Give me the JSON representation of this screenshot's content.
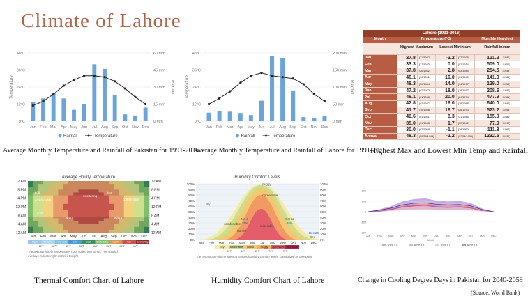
{
  "page": {
    "title": "Climate of Lahore",
    "source": "(Source: World Bank)"
  },
  "colors": {
    "title": "#b0644a",
    "bar": "#6ba3db",
    "line": "#222222",
    "table_header": "#8f3e28",
    "table_row": "#b65d43"
  },
  "captions": {
    "pakistan": "Average Monthly Temperature and Rainfall of Pakistan for 1991-2016",
    "lahore": "Average Monthly Temperature and Rainfall of Lahore for 1991-2016",
    "table": "Highest Max and Lowest Min Temp and Rainfall",
    "thermal": "Thermal Comfort Chart of Lahore",
    "humidity": "Humidity Comfort Chart of Lahore",
    "cooling": "Change in Cooling Degree Days in Pakistan for 2040-2059"
  },
  "chart_data": [
    {
      "type": "bar",
      "categories": [
        "Jan",
        "Feb",
        "Mar",
        "Apr",
        "May",
        "Jun",
        "Jul",
        "Aug",
        "Sep",
        "Oct",
        "Nov",
        "Dec"
      ],
      "series": [
        {
          "name": "Rainfall",
          "values": [
            17,
            20,
            25,
            20,
            10,
            15,
            50,
            46,
            23,
            6,
            5,
            12
          ]
        },
        {
          "name": "Temperature",
          "values": [
            11,
            14,
            19,
            25,
            29,
            32,
            32,
            31,
            28,
            23,
            17,
            12
          ]
        }
      ],
      "ylabel": "Temperature",
      "y2label": "Rainfall",
      "yticks": [
        "0°C",
        "12°C",
        "24°C",
        "36°C",
        "48°C"
      ],
      "y2ticks": [
        "0 mm",
        "15 mm",
        "30 mm",
        "45 mm",
        "60 mm"
      ],
      "ylim": [
        0,
        48
      ],
      "y2lim": [
        0,
        60
      ],
      "legend": "bottom-center"
    },
    {
      "type": "bar",
      "categories": [
        "Jan",
        "Feb",
        "Mar",
        "Apr",
        "May",
        "Jun",
        "Jul",
        "Aug",
        "Sep",
        "Oct",
        "Nov",
        "Dec"
      ],
      "series": [
        {
          "name": "Rainfall",
          "values": [
            25,
            30,
            28,
            22,
            18,
            60,
            190,
            185,
            90,
            12,
            10,
            15
          ]
        },
        {
          "name": "Temperature",
          "values": [
            12,
            16,
            21,
            27,
            32,
            34,
            32,
            31,
            30,
            26,
            19,
            14
          ]
        }
      ],
      "ylabel": "Temperature",
      "y2label": "Rainfall",
      "yticks": [
        "0°C",
        "12°C",
        "24°C",
        "36°C",
        "48°C"
      ],
      "y2ticks": [
        "0 mm",
        "50 mm",
        "100 mm",
        "150 mm",
        "200 mm"
      ],
      "ylim": [
        0,
        48
      ],
      "y2lim": [
        0,
        200
      ],
      "legend": "bottom-center"
    },
    {
      "type": "table",
      "title": "Lahore (1931-2016)",
      "columns": [
        "Month",
        "Highest Maximum",
        "Lowest Minimum",
        "Rainfall in mm"
      ],
      "group_headers": [
        "Temperature (°C)",
        "Monthly Heaviest"
      ],
      "rows": [
        [
          "Jan",
          "27.8",
          "(31/1932)",
          "-2.2",
          "(17/1935)",
          "121.2",
          "(1981)"
        ],
        [
          "Feb",
          "33.3",
          "(27/1953)",
          "0.0",
          "(02/1934)",
          "509.0",
          "(1956)"
        ],
        [
          "Mar",
          "37.8",
          "(26/1942)",
          "2.8",
          "(03/1945)",
          "254.5",
          "(1954)"
        ],
        [
          "Apr",
          "46.1",
          "(30/1941)",
          "10.0",
          "(01/1940)",
          "141.0",
          "(1985)"
        ],
        [
          "May",
          "48.3",
          "(30/1944)",
          "14.0",
          "(14/1977)",
          "129.0",
          "(1958)"
        ],
        [
          "Jun",
          "47.2",
          "(02/1973)",
          "18.0",
          "(18/1977)",
          "208.6",
          "(1996)"
        ],
        [
          "Jul",
          "46.1",
          "(01/1948)",
          "20.0",
          "(04/1974)",
          "477.9",
          "(1981)"
        ],
        [
          "Aug",
          "42.8",
          "(02/1947)",
          "19.0",
          "(18/1988)",
          "640.0",
          "(1996)"
        ],
        [
          "Sep",
          "41.7",
          "(16/1938)",
          "16.7",
          "(25/1973)",
          "523.2",
          "(1954)"
        ],
        [
          "Oct",
          "40.6",
          "(01/1941)",
          "8.3",
          "(31/1945)",
          "155.0",
          "(1985)"
        ],
        [
          "Nov",
          "35.0",
          "(01/1943)",
          "1.7",
          "(30/1942)",
          "77.9",
          "(1997)"
        ],
        [
          "Dec",
          "30.0",
          "(07/1998)",
          "-1.1",
          "(28/1950)",
          "111.8",
          "(1967)"
        ],
        [
          "Annual",
          "48.3",
          "(30/05/1944)",
          "-2.2",
          "(17/01/1935)",
          "1232.5",
          "(1997)"
        ]
      ],
      "units": [
        "(dd/yyyy)",
        "(dd/yyyy)",
        "(yyyy)"
      ]
    },
    {
      "type": "heatmap",
      "title": "Average Hourly Temperature",
      "months": [
        "Jan",
        "Feb",
        "Mar",
        "Apr",
        "May",
        "Jun",
        "Jul",
        "Aug",
        "Sep",
        "Oct",
        "Nov",
        "Dec"
      ],
      "yticks": [
        "12 AM",
        "8 PM",
        "4 PM",
        "12 PM",
        "8 AM",
        "4 AM",
        "12 AM"
      ],
      "regions": [
        "cool",
        "comfortable",
        "warm",
        "hot",
        "sweltering",
        "cold"
      ],
      "legend": [
        "frigid",
        "freezing",
        "very cold",
        "cold",
        "cool",
        "comfortable",
        "warm",
        "hot",
        "sweltering"
      ],
      "legend_ticks": [
        "15°F",
        "32°F",
        "45°F",
        "55°F",
        "65°F",
        "75°F",
        "85°F",
        "95°F"
      ],
      "note": "The average hourly temperature, color coded into bands. The shaded overlays indicate night and civil twilight."
    },
    {
      "type": "area",
      "title": "Humidity Comfort Levels",
      "yticks": [
        "100%",
        "90%",
        "80%",
        "70%",
        "60%",
        "50%",
        "40%",
        "30%",
        "20%",
        "10%",
        "0%"
      ],
      "months": [
        "Jan",
        "Feb",
        "Mar",
        "Apr",
        "May",
        "Jun",
        "Jul",
        "Aug",
        "Sep",
        "Oct",
        "Nov",
        "Dec"
      ],
      "labels": [
        "dry",
        "comfortable",
        "humid",
        "muggy",
        "oppressive",
        "miserable"
      ],
      "annotations": [
        "Jun 4",
        "25%",
        "Oct 11",
        "25%",
        "Dec 20",
        "0%"
      ],
      "legend": [
        "dry",
        "comfortable",
        "humid",
        "muggy",
        "oppressive",
        "miserable"
      ],
      "legend_ticks": [
        "55°F",
        "60°F",
        "65°F",
        "70°F",
        "75°F"
      ],
      "note": "The percentage of time spent at various humidity comfort levels, categorized by dew point."
    },
    {
      "type": "area",
      "categories": [
        "JAN",
        "FEB",
        "MAR",
        "APR",
        "MAY",
        "JUN",
        "JUL",
        "AUG",
        "SEP",
        "OCT",
        "NOV",
        "DEC"
      ],
      "series": [
        {
          "name": "RCP 2.6",
          "values": [
            0,
            5,
            20,
            45,
            55,
            60,
            45,
            40,
            45,
            35,
            10,
            0
          ]
        },
        {
          "name": "RCP 4.5",
          "values": [
            0,
            8,
            25,
            50,
            60,
            65,
            50,
            45,
            50,
            40,
            12,
            0
          ]
        },
        {
          "name": "RCP 6.0",
          "values": [
            0,
            10,
            30,
            55,
            70,
            75,
            60,
            55,
            58,
            45,
            15,
            0
          ]
        },
        {
          "name": "RCP 8.5",
          "values": [
            0,
            15,
            35,
            65,
            80,
            85,
            70,
            65,
            68,
            55,
            20,
            0
          ]
        }
      ],
      "yticks": [
        "200",
        "100",
        "0",
        "-100",
        "-200"
      ],
      "xlabel": "Month",
      "legend": "bottom-center"
    }
  ]
}
